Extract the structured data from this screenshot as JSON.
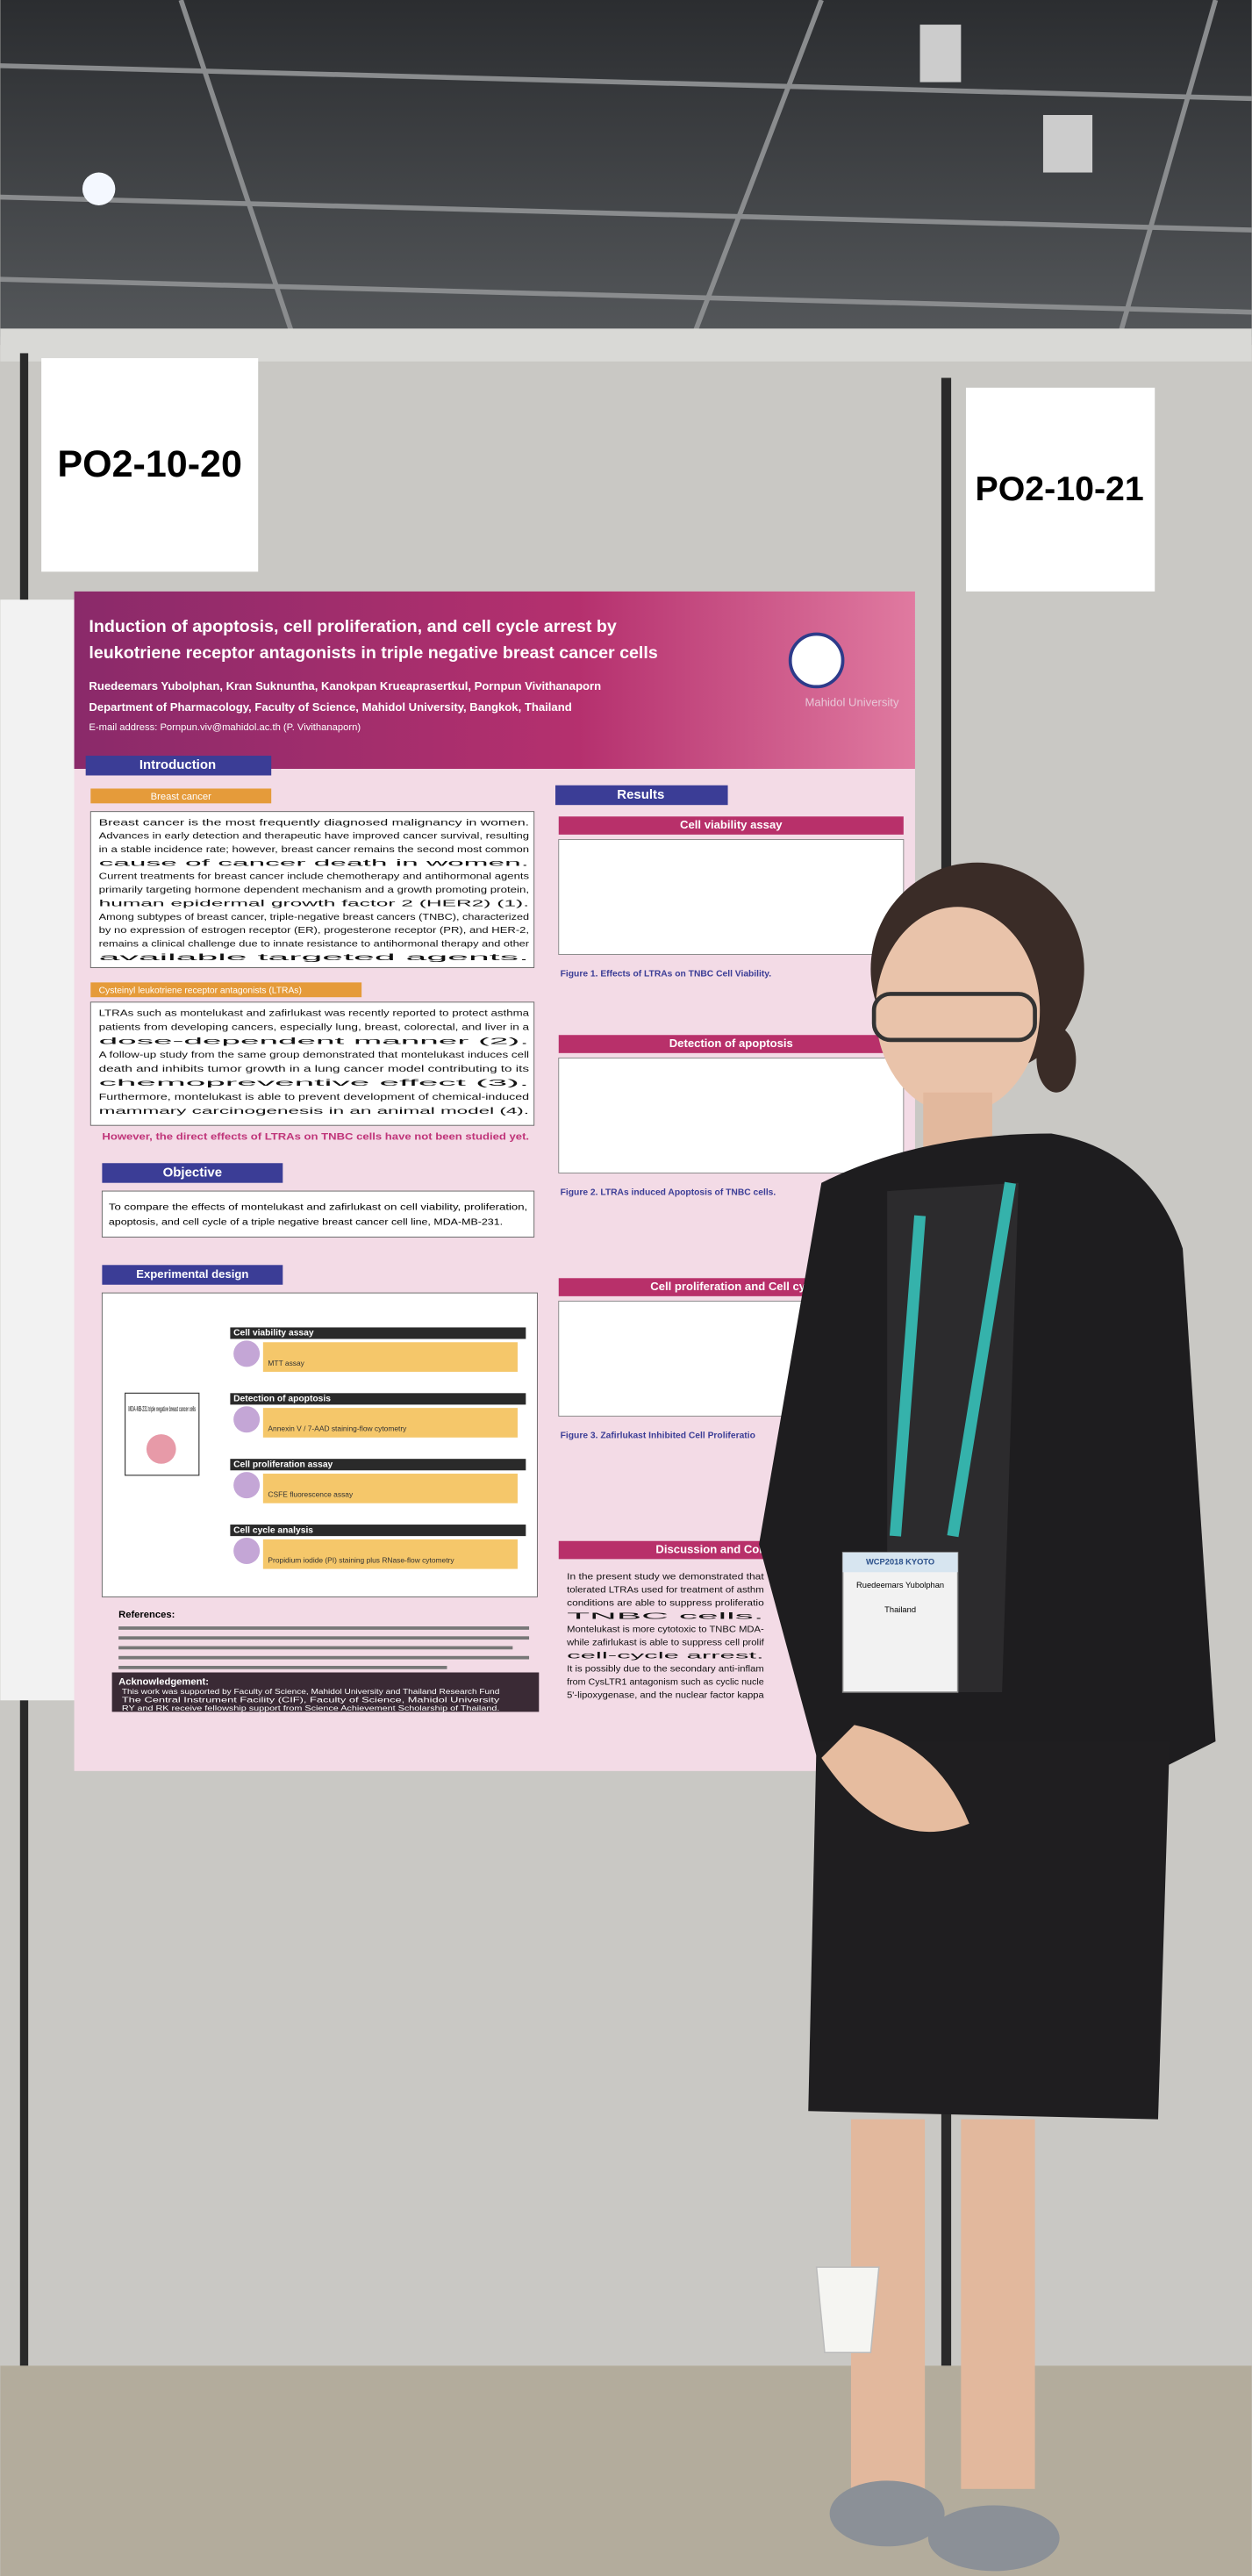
{
  "board_labels": [
    "PO2-10-20",
    "PO2-10-21"
  ],
  "poster": {
    "title": [
      "Induction of apoptosis, cell proliferation, and cell cycle arrest by",
      "leukotriene receptor antagonists in triple negative breast cancer cells"
    ],
    "authors": "Ruedeemars Yubolphan, Kran Suknuntha, Kanokpan Krueaprasertkul, Pornpun Vivithanaporn",
    "affiliation": "Department of Pharmacology, Faculty of Science, Mahidol University, Bangkok, Thailand",
    "email": "E-mail address: Pornpun.viv@mahidol.ac.th (P. Vivithanaporn)",
    "logo_text": "Mahidol University",
    "introduction": {
      "heading": "Introduction",
      "sub1": "Breast cancer",
      "bullets1": [
        "Breast cancer is the most frequently diagnosed malignancy in women.",
        "Advances in early detection and therapeutic have improved cancer survival, resulting",
        "in a stable incidence rate; however, breast cancer remains the second most common",
        "cause of cancer death in women.",
        "Current treatments for breast cancer include chemotherapy and antihormonal agents",
        "primarily targeting hormone dependent mechanism and a growth promoting protein,",
        "human epidermal growth factor 2 (HER2) (1).",
        "Among subtypes of breast cancer, triple-negative breast cancers (TNBC), characterized",
        "by no expression of estrogen receptor (ER), progesterone receptor (PR), and HER-2,",
        "remains a clinical challenge due to innate resistance to antihormonal therapy and other",
        "available targeted agents."
      ],
      "sub2": "Cysteinyl leukotriene receptor antagonists (LTRAs)",
      "bullets2": [
        "LTRAs such as montelukast and zafirlukast was recently reported to protect asthma",
        "patients from developing cancers, especially lung, breast, colorectal, and liver in a",
        "dose-dependent manner (2).",
        "A follow-up study from the same group demonstrated that montelukast induces cell",
        "death and inhibits tumor growth in a lung cancer model contributing to its",
        "chemopreventive effect (3).",
        "Furthermore, montelukast is able to prevent development of chemical-induced",
        "mammary carcinogenesis in an animal model (4)."
      ],
      "note": "However, the direct effects of LTRAs on TNBC cells have not been studied yet."
    },
    "objective": {
      "heading": "Objective",
      "text": [
        "To compare the effects of montelukast and zafirlukast on cell viability, proliferation,",
        "apoptosis, and cell cycle of a triple negative breast cancer cell line, MDA-MB-231."
      ]
    },
    "design": {
      "heading": "Experimental design",
      "cell": "MDA-MB-231 triple negative breast cancer cells",
      "steps": [
        "Cell viability assay",
        "Detection of apoptosis",
        "Cell proliferation assay",
        "Cell cycle analysis"
      ],
      "methods": [
        "MTT assay",
        "Annexin V / 7-AAD staining-flow cytometry",
        "CSFE fluorescence assay",
        "Propidium iodide (PI) staining plus RNase-flow cytometry"
      ]
    },
    "references_heading": "References:",
    "acknowledgement": {
      "heading": "Acknowledgement:",
      "lines": [
        "This work was supported by Faculty of Science, Mahidol University and Thailand Research Fund",
        "The Central Instrument Facility (CIF), Faculty of Science, Mahidol University",
        "RY and RK receive fellowship support from Science Achievement Scholarship of Thailand."
      ]
    },
    "results": {
      "heading": "Results",
      "sections": [
        "Cell viability assay",
        "Detection of apoptosis",
        "Cell proliferation and Cell cyc",
        "Discussion and Conclusion"
      ],
      "figures": [
        "Figure 1. Effects of LTRAs on TNBC Cell Viability.",
        "Figure 2. LTRAs induced Apoptosis of TNBC cells.",
        "Figure 3. Zafirlukast Inhibited Cell Proliferatio"
      ],
      "conclusion": [
        "In the present study we demonstrated that",
        "tolerated LTRAs used for treatment of asthm",
        "conditions are able to suppress proliferatio",
        "TNBC cells.",
        "Montelukast is more cytotoxic to TNBC MDA-",
        "while zafirlukast is able to suppress cell prolif",
        "cell-cycle arrest.",
        "It is possibly due to the secondary anti-inflam",
        "from CysLTR1 antagonism such as cyclic nucle",
        "5'-lipoxygenase, and the nuclear factor kappa"
      ]
    }
  },
  "badge": {
    "event": "WCP2018 KYOTO",
    "name": "Ruedeemars Yubolphan",
    "country": "Thailand"
  }
}
